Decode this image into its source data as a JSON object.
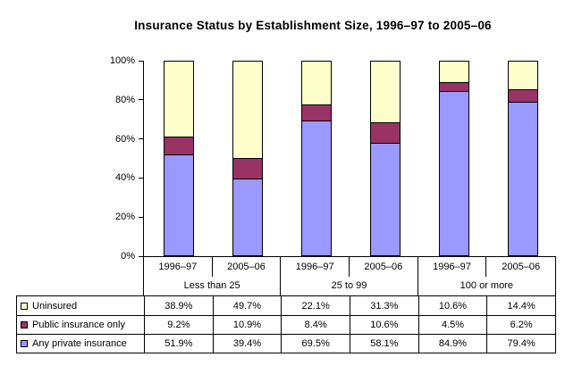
{
  "title": "Insurance Status by Establishment Size, 1996–97 to 2005–06",
  "colors": {
    "uninsured": "#FFFFCC",
    "public_insurance_only": "#993366",
    "any_private_insurance": "#9999FF",
    "axis_and_borders": "#000000",
    "background": "#FFFFFF"
  },
  "chart_data": {
    "type": "bar",
    "stacked": true,
    "title": "Insurance Status by Establishment Size, 1996–97 to 2005–06",
    "xlabel": "",
    "ylabel": "",
    "ylim": [
      0,
      100
    ],
    "y_ticks": [
      "0%",
      "20%",
      "40%",
      "60%",
      "80%",
      "100%"
    ],
    "grid": false,
    "legend_position": "table-left",
    "groups": [
      "Less than 25",
      "25 to 99",
      "100 or more"
    ],
    "categories": [
      "1996–97",
      "2005–06",
      "1996–97",
      "2005–06",
      "1996–97",
      "2005–06"
    ],
    "series": [
      {
        "name": "Uninsured",
        "color": "#FFFFCC",
        "values": [
          38.9,
          49.7,
          22.1,
          31.3,
          10.6,
          14.4
        ]
      },
      {
        "name": "Public insurance only",
        "color": "#993366",
        "values": [
          9.2,
          10.9,
          8.4,
          10.6,
          4.5,
          6.2
        ]
      },
      {
        "name": "Any private insurance",
        "color": "#9999FF",
        "values": [
          51.9,
          39.4,
          69.5,
          58.1,
          84.9,
          79.4
        ]
      }
    ]
  },
  "table": {
    "rows": [
      {
        "label": "Uninsured",
        "swatch_color": "#FFFFCC",
        "values": [
          "38.9%",
          "49.7%",
          "22.1%",
          "31.3%",
          "10.6%",
          "14.4%"
        ]
      },
      {
        "label": "Public insurance only",
        "swatch_color": "#993366",
        "values": [
          "9.2%",
          "10.9%",
          "8.4%",
          "10.6%",
          "4.5%",
          "6.2%"
        ]
      },
      {
        "label": "Any private insurance",
        "swatch_color": "#9999FF",
        "values": [
          "51.9%",
          "39.4%",
          "69.5%",
          "58.1%",
          "84.9%",
          "79.4%"
        ]
      }
    ]
  }
}
